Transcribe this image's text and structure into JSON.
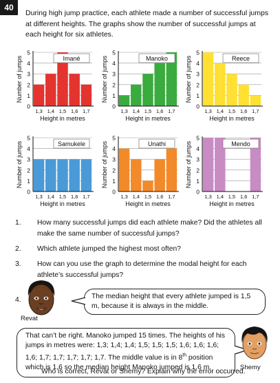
{
  "page": {
    "number": "40"
  },
  "intro": "During high jump practice, each athlete made a number of successful jumps at different heights. The graphs show the number of successful jumps at each height for six athletes.",
  "charts_common": {
    "xlabel": "Height in metres",
    "ylabel": "Number of jumps",
    "yticks": [
      "0",
      "1",
      "2",
      "3",
      "4",
      "5"
    ],
    "categories": [
      "1,3",
      "1,4",
      "1,5",
      "1,6",
      "1,7"
    ]
  },
  "chart_data": [
    {
      "type": "bar",
      "title": "Imané",
      "categories": [
        "1,3",
        "1,4",
        "1,5",
        "1,6",
        "1,7"
      ],
      "values": [
        2,
        3,
        5,
        3,
        2
      ],
      "ylim": [
        0,
        5
      ],
      "color": "#e3342f"
    },
    {
      "type": "bar",
      "title": "Manoko",
      "categories": [
        "1,3",
        "1,4",
        "1,5",
        "1,6",
        "1,7"
      ],
      "values": [
        1,
        2,
        3,
        4,
        5
      ],
      "ylim": [
        0,
        5
      ],
      "color": "#3aab3e"
    },
    {
      "type": "bar",
      "title": "Reece",
      "categories": [
        "1,3",
        "1,4",
        "1,5",
        "1,6",
        "1,7"
      ],
      "values": [
        5,
        4,
        3,
        2,
        1
      ],
      "ylim": [
        0,
        5
      ],
      "color": "#ffe033"
    },
    {
      "type": "bar",
      "title": "Samukele",
      "categories": [
        "1,3",
        "1,4",
        "1,5",
        "1,6",
        "1,7"
      ],
      "values": [
        3,
        3,
        3,
        3,
        3
      ],
      "ylim": [
        0,
        5
      ],
      "color": "#4a9ad8"
    },
    {
      "type": "bar",
      "title": "Unathi",
      "categories": [
        "1,3",
        "1,4",
        "1,5",
        "1,6",
        "1,7"
      ],
      "values": [
        4,
        3,
        1,
        3,
        4
      ],
      "ylim": [
        0,
        5
      ],
      "color": "#f28a2a"
    },
    {
      "type": "bar",
      "title": "Mendo",
      "categories": [
        "1,3",
        "1,4",
        "1,5",
        "1,6",
        "1,7"
      ],
      "values": [
        5,
        5,
        0,
        0,
        5
      ],
      "ylim": [
        0,
        5
      ],
      "color": "#c98bc4"
    }
  ],
  "questions": [
    {
      "num": "1.",
      "text": "How many successful jumps did each athlete make? Did the athletes all make the same number of successful jumps?"
    },
    {
      "num": "2.",
      "text": "Which athlete jumped the highest most often?"
    },
    {
      "num": "3.",
      "text": "How can you use the graph to determine the modal height for each athlete’s successful jumps?"
    },
    {
      "num": "4."
    }
  ],
  "revat": {
    "name": "Revat",
    "speech": "The median height that every athlete jumped is 1,5 m, because it is always in the middle."
  },
  "shemy": {
    "name": "Shemy",
    "speech_before_sup": "That can’t be right. Manoko jumped 15 times. The heights of his jumps in metres were: 1,3; 1,4; 1,4; 1,5; 1,5; 1,5; 1,6; 1,6; 1,6; 1,6; 1,7; 1,7; 1,7; 1,7; 1,7. The middle value is in 8",
    "sup": "th",
    "speech_after_sup": " position which is 1,6 so the median height Manoko jumped is 1,6 m."
  },
  "final_question": "Who is correct, Revat or Shemy? Explain why the error occurred."
}
